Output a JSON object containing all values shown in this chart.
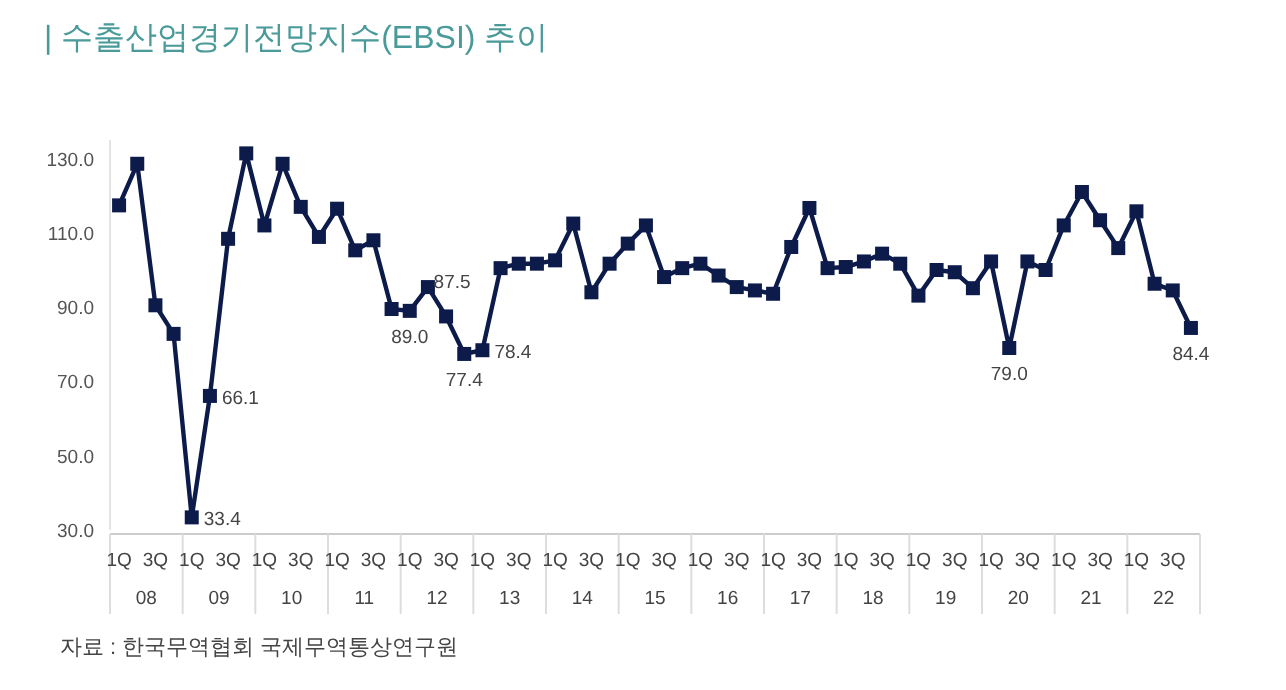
{
  "chart_data": {
    "type": "line",
    "title": "|  수출산업경기전망지수(EBSI) 추이",
    "categories": [
      "1Q",
      null,
      "3Q",
      null,
      "1Q",
      null,
      "3Q",
      null,
      "1Q",
      null,
      "3Q",
      null,
      "1Q",
      null,
      "3Q",
      null,
      "1Q",
      null,
      "3Q",
      null,
      "1Q",
      null,
      "3Q",
      null,
      "1Q",
      null,
      "3Q",
      null,
      "1Q",
      null,
      "3Q",
      null,
      "1Q",
      null,
      "3Q",
      null,
      "1Q",
      null,
      "3Q",
      null,
      "1Q",
      null,
      "3Q",
      null,
      "1Q",
      null,
      "3Q",
      null,
      "1Q",
      null,
      "3Q",
      null,
      "1Q",
      null,
      "3Q",
      null,
      "1Q",
      null,
      "3Q",
      null
    ],
    "series": [
      {
        "color": "#0d1b4b",
        "values": [
          117.4,
          128.6,
          90.5,
          82.8,
          33.4,
          66.1,
          108.4,
          131.4,
          112,
          128.6,
          117,
          108.9,
          116.5,
          105.3,
          108,
          89.5,
          89.0,
          95.4,
          87.5,
          77.4,
          78.4,
          100.5,
          101.7,
          101.7,
          102.6,
          112.5,
          94,
          101.7,
          107.1,
          112,
          98.1,
          100.5,
          101.7,
          98.5,
          95.4,
          94.5,
          93.6,
          106.2,
          116.7,
          100.5,
          100.8,
          102.3,
          104.4,
          101.7,
          93.1,
          100,
          99.4,
          95.1,
          102.3,
          79.0,
          102.3,
          100,
          112,
          121,
          113.4,
          105.9,
          115.8,
          96.3,
          94.5,
          84.4
        ],
        "value_labels": [
          null,
          null,
          null,
          null,
          "33.4",
          "66.1",
          null,
          null,
          null,
          null,
          null,
          null,
          null,
          null,
          null,
          null,
          "89.0",
          null,
          "87.5",
          "77.4",
          "78.4",
          null,
          null,
          null,
          null,
          null,
          null,
          null,
          null,
          null,
          null,
          null,
          null,
          null,
          null,
          null,
          null,
          null,
          null,
          null,
          null,
          null,
          null,
          null,
          null,
          null,
          null,
          null,
          null,
          "79.0",
          null,
          null,
          null,
          null,
          null,
          null,
          null,
          null,
          null,
          "84.4"
        ]
      }
    ],
    "ylim": [
      30,
      135
    ],
    "yticks": [
      {
        "value": 30,
        "label": "30.0"
      },
      {
        "value": 50,
        "label": "50.0"
      },
      {
        "value": 70,
        "label": "70.0"
      },
      {
        "value": 90,
        "label": "90.0"
      },
      {
        "value": 110,
        "label": "110.0"
      },
      {
        "value": 130,
        "label": "130.0"
      }
    ],
    "marker": "square",
    "line_style": "solid",
    "grid": false,
    "annotations": [
      "자료 : 한국무역협회 국제무역통상연구원",
      "08",
      "09",
      "10",
      "11",
      "12",
      "13",
      "14",
      "15",
      "16",
      "17",
      "18",
      "19",
      "20",
      "21",
      "22"
    ]
  }
}
